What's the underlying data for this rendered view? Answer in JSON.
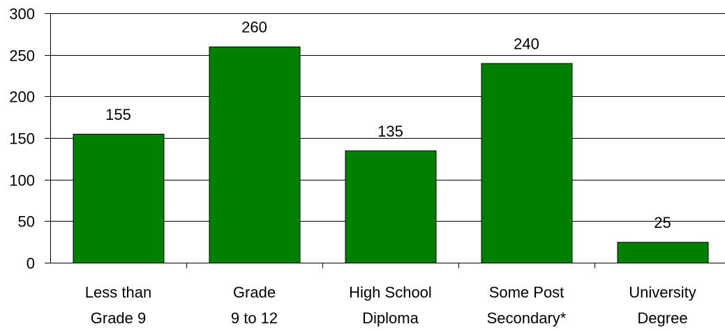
{
  "chart_data": {
    "type": "bar",
    "categories": [
      [
        "Less than",
        "Grade 9"
      ],
      [
        "Grade",
        "9 to 12"
      ],
      [
        "High School",
        "Diploma"
      ],
      [
        "Some Post",
        "Secondary*"
      ],
      [
        "University",
        "Degree"
      ]
    ],
    "values": [
      155,
      260,
      135,
      240,
      25
    ],
    "data_labels": [
      "155",
      "260",
      "135",
      "240",
      "25"
    ],
    "y_ticks": [
      0,
      50,
      100,
      150,
      200,
      250,
      300
    ],
    "ylim": [
      0,
      300
    ],
    "title": "",
    "xlabel": "",
    "ylabel": "",
    "grid": "horizontal",
    "legend": "none",
    "colors": {
      "bar": "#008000",
      "bar_outline": "#000000",
      "grid": "#000000",
      "axis": "#000000",
      "text": "#000000",
      "background": "#ffffff"
    }
  }
}
